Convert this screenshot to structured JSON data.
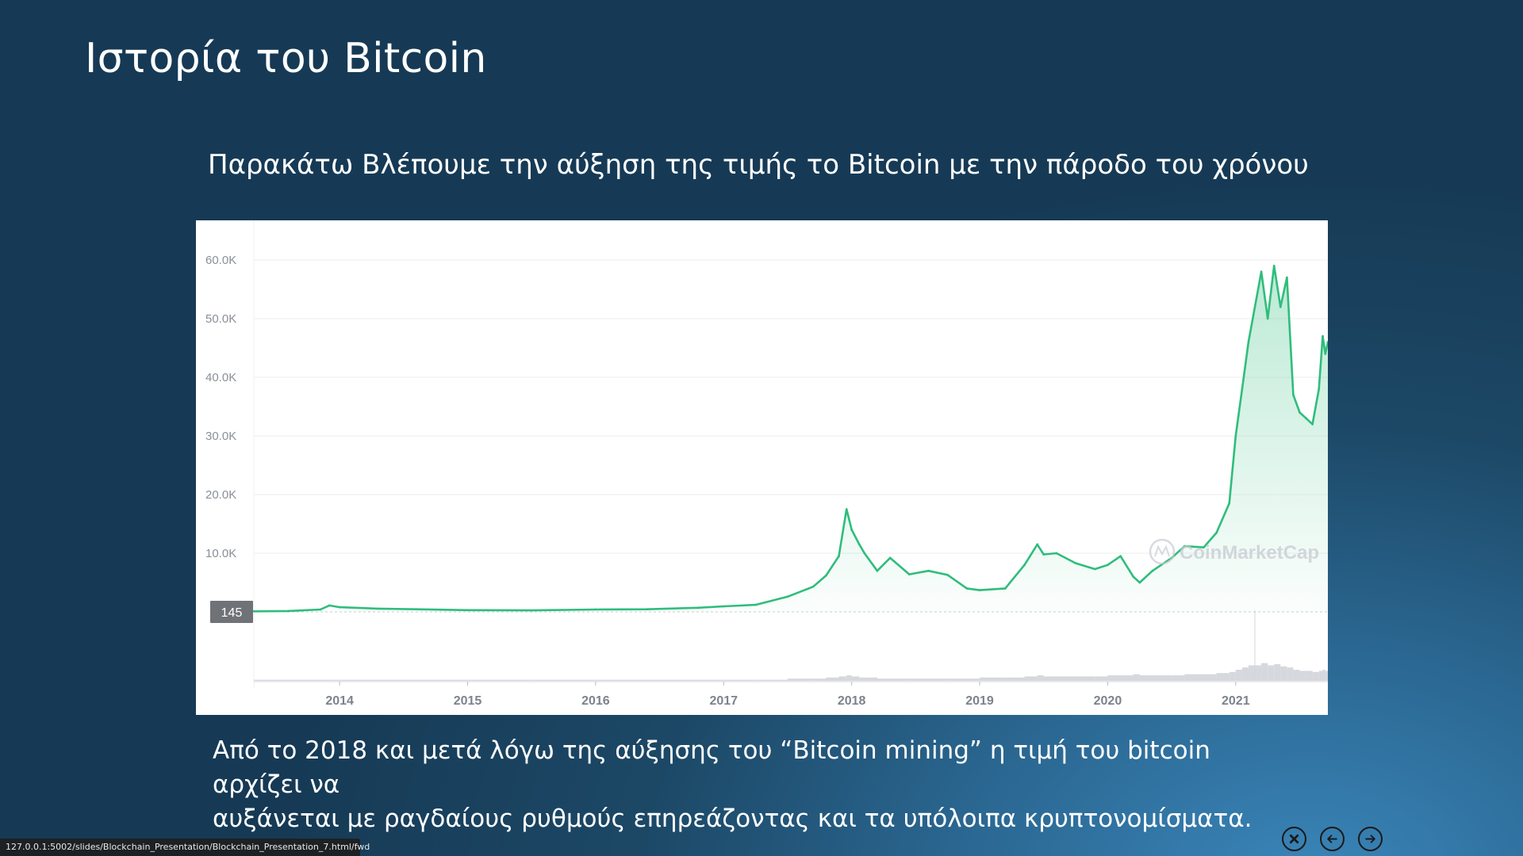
{
  "slide": {
    "title": "Ιστορία του Bitcoin",
    "subtitle": "Παρακάτω Βλέπουμε την αύξηση της τιμής το Bitcoin με την πάροδο του χρόνου",
    "caption_line1": "Από το 2018 και μετά λόγω της αύξησης του “Bitcoin mining” η τιμή του bitcoin αρχίζει να",
    "caption_line2": "αυξάνεται με ραγδαίους ρυθμούς επηρεάζοντας και τα υπόλοιπα κρυπτονομίσματα."
  },
  "status_bar": {
    "url": "127.0.0.1:5002/slides/Blockchain_Presentation/Blockchain_Presentation_7.html/fwd"
  },
  "nav": {
    "close_icon": "close-icon",
    "prev_icon": "arrow-left-icon",
    "next_icon": "arrow-right-icon"
  },
  "chart_data": {
    "type": "area",
    "watermark": "CoinMarketCap",
    "current_price_label": "145",
    "y_tick_labels": [
      "60.0K",
      "50.0K",
      "40.0K",
      "30.0K",
      "20.0K",
      "10.0K"
    ],
    "y_ticks": [
      60000,
      50000,
      40000,
      30000,
      20000,
      10000
    ],
    "ylim": [
      0,
      64000
    ],
    "x_tick_labels": [
      "2014",
      "2015",
      "2016",
      "2017",
      "2018",
      "2019",
      "2020",
      "2021"
    ],
    "x_ticks": [
      2014.0,
      2015.0,
      2016.0,
      2017.0,
      2018.0,
      2019.0,
      2020.0,
      2021.0
    ],
    "xlim": [
      2013.33,
      2021.72
    ],
    "colors": {
      "line": "#2fbd7c",
      "fill": "#2fbd7c",
      "grid": "#eeeeee",
      "volume": "#cfd1d8",
      "label_box": "#6f7277"
    },
    "x": [
      2013.33,
      2013.6,
      2013.85,
      2013.92,
      2014.0,
      2014.3,
      2014.6,
      2015.0,
      2015.5,
      2016.0,
      2016.4,
      2016.8,
      2017.0,
      2017.25,
      2017.5,
      2017.7,
      2017.8,
      2017.9,
      2017.96,
      2018.0,
      2018.06,
      2018.1,
      2018.2,
      2018.3,
      2018.45,
      2018.6,
      2018.75,
      2018.9,
      2019.0,
      2019.2,
      2019.35,
      2019.45,
      2019.5,
      2019.6,
      2019.75,
      2019.9,
      2020.0,
      2020.1,
      2020.2,
      2020.25,
      2020.35,
      2020.5,
      2020.6,
      2020.75,
      2020.85,
      2020.95,
      2021.0,
      2021.05,
      2021.1,
      2021.2,
      2021.25,
      2021.3,
      2021.35,
      2021.4,
      2021.45,
      2021.5,
      2021.55,
      2021.6,
      2021.65,
      2021.68,
      2021.7,
      2021.72
    ],
    "y": [
      100,
      150,
      400,
      1100,
      800,
      550,
      450,
      300,
      250,
      400,
      450,
      700,
      950,
      1200,
      2600,
      4300,
      6200,
      9500,
      17500,
      14000,
      11500,
      10000,
      7000,
      9200,
      6400,
      7000,
      6300,
      4000,
      3700,
      4000,
      8000,
      11500,
      9800,
      10000,
      8300,
      7300,
      8000,
      9500,
      6000,
      5000,
      7000,
      9200,
      11200,
      11000,
      13500,
      18500,
      30000,
      38000,
      46000,
      58000,
      50000,
      59000,
      52000,
      57000,
      37000,
      34000,
      33000,
      32000,
      38000,
      47000,
      44000,
      46000
    ],
    "volume_index": [
      1,
      1,
      1,
      1,
      1,
      1,
      1,
      1,
      1,
      1,
      1,
      1,
      1,
      1,
      2,
      2,
      3,
      4,
      5,
      4,
      3,
      3,
      2,
      2,
      2,
      2,
      2,
      2,
      3,
      3,
      4,
      5,
      4,
      4,
      4,
      4,
      5,
      5,
      6,
      5,
      5,
      5,
      6,
      6,
      7,
      8,
      10,
      12,
      14,
      16,
      14,
      15,
      13,
      12,
      10,
      9,
      9,
      8,
      9,
      10,
      9,
      9
    ]
  }
}
